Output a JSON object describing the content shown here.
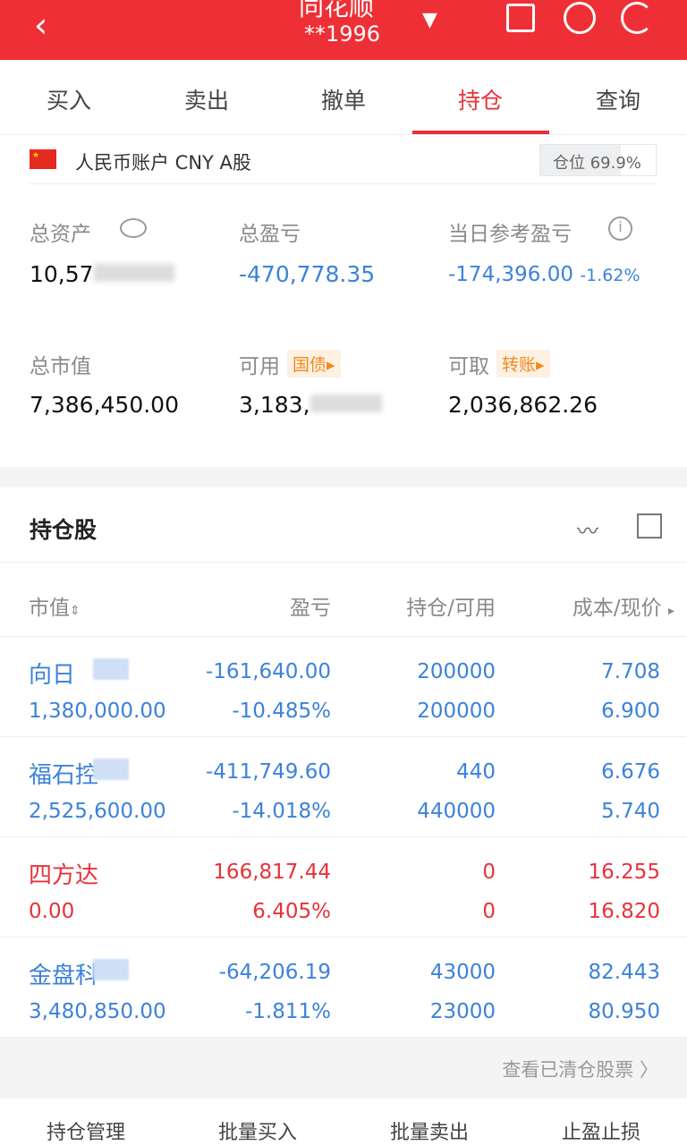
{
  "header": {
    "title": "同花顺",
    "account": "**1996"
  },
  "tabs": [
    {
      "label": "买入"
    },
    {
      "label": "卖出"
    },
    {
      "label": "撤单"
    },
    {
      "label": "持仓"
    },
    {
      "label": "查询"
    }
  ],
  "account": {
    "label": "人民币账户 CNY A股",
    "position": "仓位 69.9%",
    "position_pct": 69.9
  },
  "stats": {
    "total_assets_label": "总资产",
    "total_assets": "10,57",
    "total_pl_label": "总盈亏",
    "total_pl": "-470,778.35",
    "daily_pl_label": "当日参考盈亏",
    "daily_pl": "-174,396.00",
    "daily_pl_pct": "-1.62%",
    "market_value_label": "总市值",
    "market_value": "7,386,450.00",
    "available_label": "可用",
    "available": "3,183,",
    "available_badge": "国债",
    "withdrawable_label": "可取",
    "withdrawable": "2,036,862.26",
    "withdrawable_badge": "转账"
  },
  "holdings": {
    "title": "持仓股",
    "columns": [
      "市值",
      "盈亏",
      "持仓/可用",
      "成本/现价"
    ],
    "rows": [
      {
        "name": "向日",
        "value": "1,380,000.00",
        "pl": "-161,640.00",
        "pl_pct": "-10.485%",
        "hold": "200000",
        "avail": "200000",
        "cost": "7.708",
        "price": "6.900",
        "color": "blue"
      },
      {
        "name": "福石控",
        "value": "2,525,600.00",
        "pl": "-411,749.60",
        "pl_pct": "-14.018%",
        "hold": "440",
        "avail": "440000",
        "cost": "6.676",
        "price": "5.740",
        "color": "blue"
      },
      {
        "name": "四方达",
        "value": "0.00",
        "pl": "166,817.44",
        "pl_pct": "6.405%",
        "hold": "0",
        "avail": "0",
        "cost": "16.255",
        "price": "16.820",
        "color": "red"
      },
      {
        "name": "金盘科",
        "value": "3,480,850.00",
        "pl": "-64,206.19",
        "pl_pct": "-1.811%",
        "hold": "43000",
        "avail": "23000",
        "cost": "82.443",
        "price": "80.950",
        "color": "blue"
      }
    ],
    "cleared_link": "查看已清仓股票 〉"
  },
  "bottom": [
    "持仓管理",
    "批量买入",
    "批量卖出",
    "止盈止损"
  ],
  "colors": {
    "brand": "#ee3036",
    "loss": "#3b82dc",
    "gain": "#e8323a"
  }
}
